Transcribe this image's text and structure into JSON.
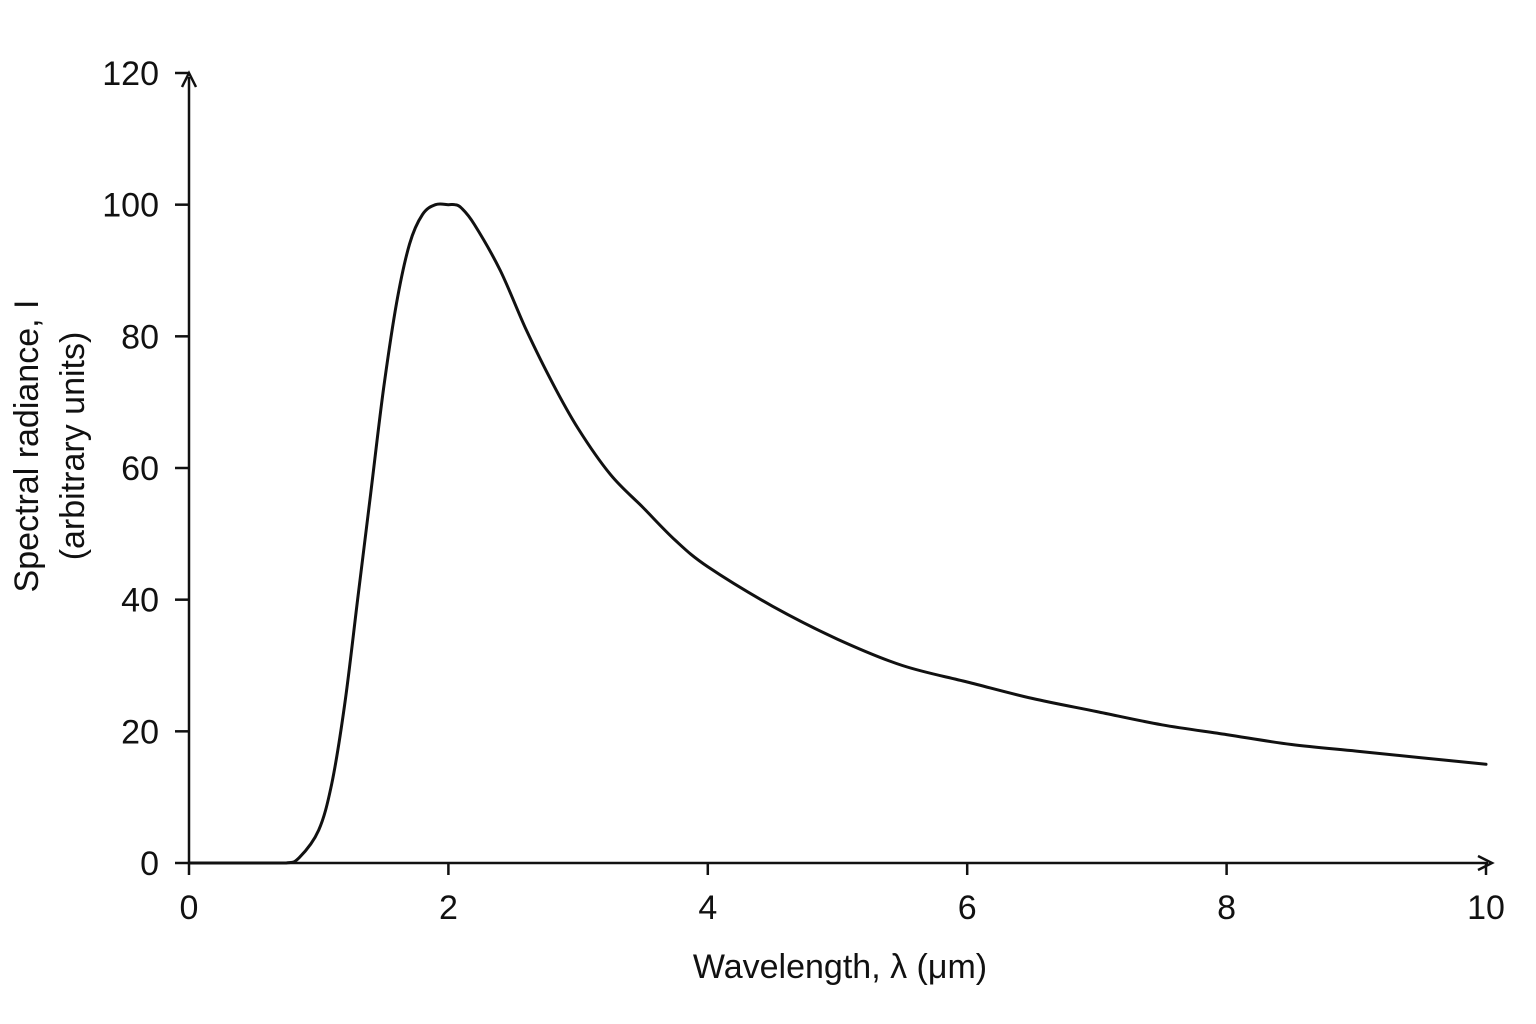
{
  "chart_data": {
    "type": "line",
    "title": "",
    "xlabel": "Wavelength, λ (μm)",
    "ylabel_line1": "Spectral radiance, I",
    "ylabel_line2": "(arbitrary units)",
    "xlim": [
      0,
      10
    ],
    "ylim": [
      0,
      120
    ],
    "xticks": [
      0,
      2,
      4,
      6,
      8,
      10
    ],
    "yticks": [
      0,
      20,
      40,
      60,
      80,
      100,
      120
    ],
    "xtick_labels": [
      "0",
      "2",
      "4",
      "6",
      "8",
      "10"
    ],
    "ytick_labels": [
      "0",
      "20",
      "40",
      "60",
      "80",
      "100",
      "120"
    ],
    "grid": false,
    "line_color": "#111111",
    "series": [
      {
        "x": [
          0,
          0.5,
          0.75,
          0.85,
          1.0,
          1.1,
          1.2,
          1.3,
          1.4,
          1.5,
          1.6,
          1.7,
          1.8,
          1.9,
          2.0,
          2.05,
          2.1,
          2.2,
          2.4,
          2.6,
          2.8,
          3.0,
          3.25,
          3.5,
          3.75,
          4.0,
          4.5,
          5.0,
          5.5,
          6.0,
          6.5,
          7.0,
          7.5,
          8.0,
          8.5,
          9.0,
          9.5,
          10.0
        ],
        "y": [
          0,
          0,
          0,
          0.8,
          5,
          12,
          24,
          40,
          56,
          72,
          85,
          94,
          98.5,
          100,
          100,
          100,
          99.5,
          97,
          90,
          81,
          73,
          66,
          59,
          54,
          49,
          45,
          39,
          34,
          30,
          27.5,
          25,
          23,
          21,
          19.5,
          18,
          17,
          16,
          15
        ]
      }
    ]
  }
}
